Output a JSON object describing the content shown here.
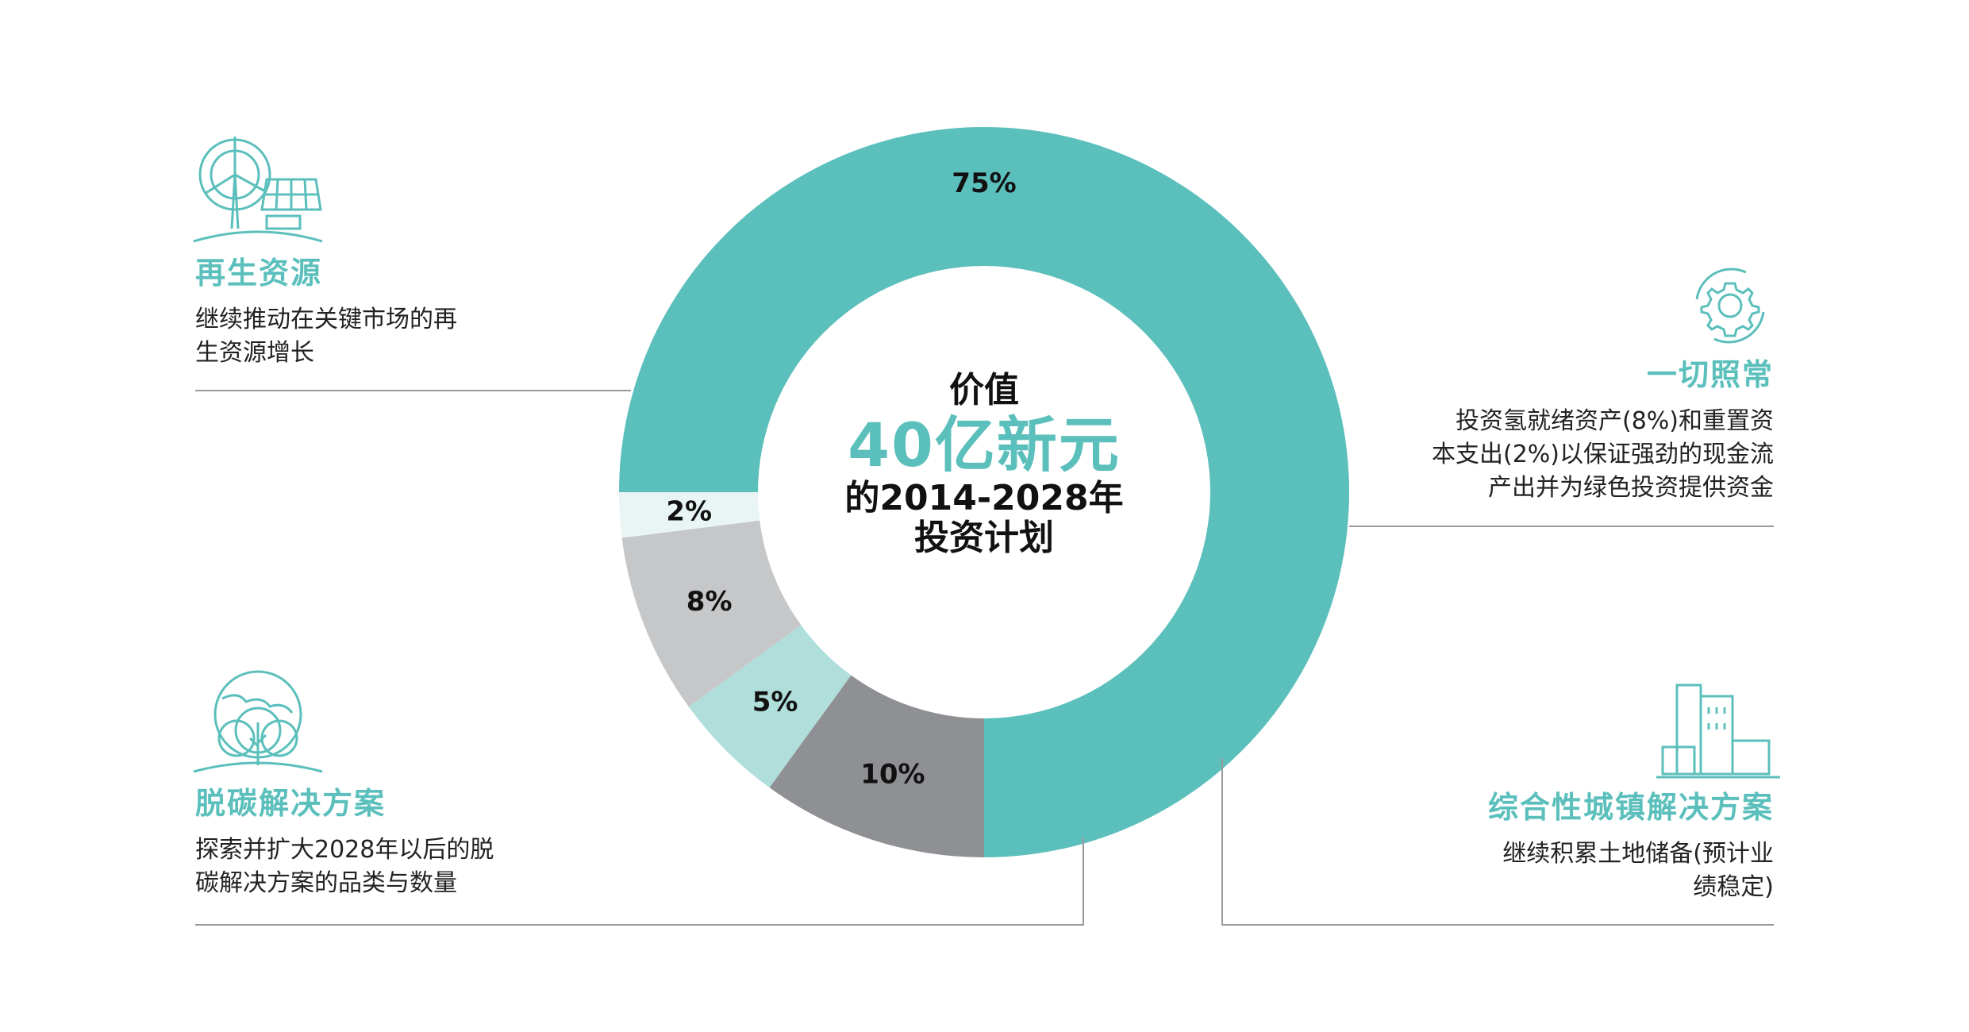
{
  "center": {
    "line1": "价值",
    "line2": "40亿新元",
    "line3": "的2014-2028年",
    "line4": "投资计划"
  },
  "categories": [
    {
      "title": "再生资源",
      "desc": "继续推动在关键市场的再\n生资源增长"
    },
    {
      "title": "一切照常",
      "desc": "投资氢就绪资产(8%)和重置资\n本支出(2%)以保证强劲的现金流\n产出并为绿色投资提供资金"
    },
    {
      "title": "脱碳解决方案",
      "desc": "探索并扩大2028年以后的脱\n碳解决方案的品类与数量"
    },
    {
      "title": "综合性城镇解决方案",
      "desc": "继续积累土地储备(预计业\n绩稳定)"
    }
  ],
  "icons": [
    "wind-solar-icon",
    "gear-cycle-icon",
    "globe-tree-icon",
    "city-buildings-icon"
  ],
  "chart_data": {
    "type": "pie",
    "donut": true,
    "start": "bottom",
    "direction": "counterclockwise",
    "slices": [
      {
        "value": 75,
        "label": "75%",
        "color": "#5bbfbc"
      },
      {
        "value": 2,
        "label": "2%",
        "color": "#e8f5f4"
      },
      {
        "value": 8,
        "label": "8%",
        "color": "#c6c7c9"
      },
      {
        "value": 5,
        "label": "5%",
        "color": "#b0deda"
      },
      {
        "value": 10,
        "label": "10%",
        "color": "#8f9093"
      }
    ]
  },
  "colors": {
    "accent": "#5bbfbc",
    "line": "#999999"
  }
}
